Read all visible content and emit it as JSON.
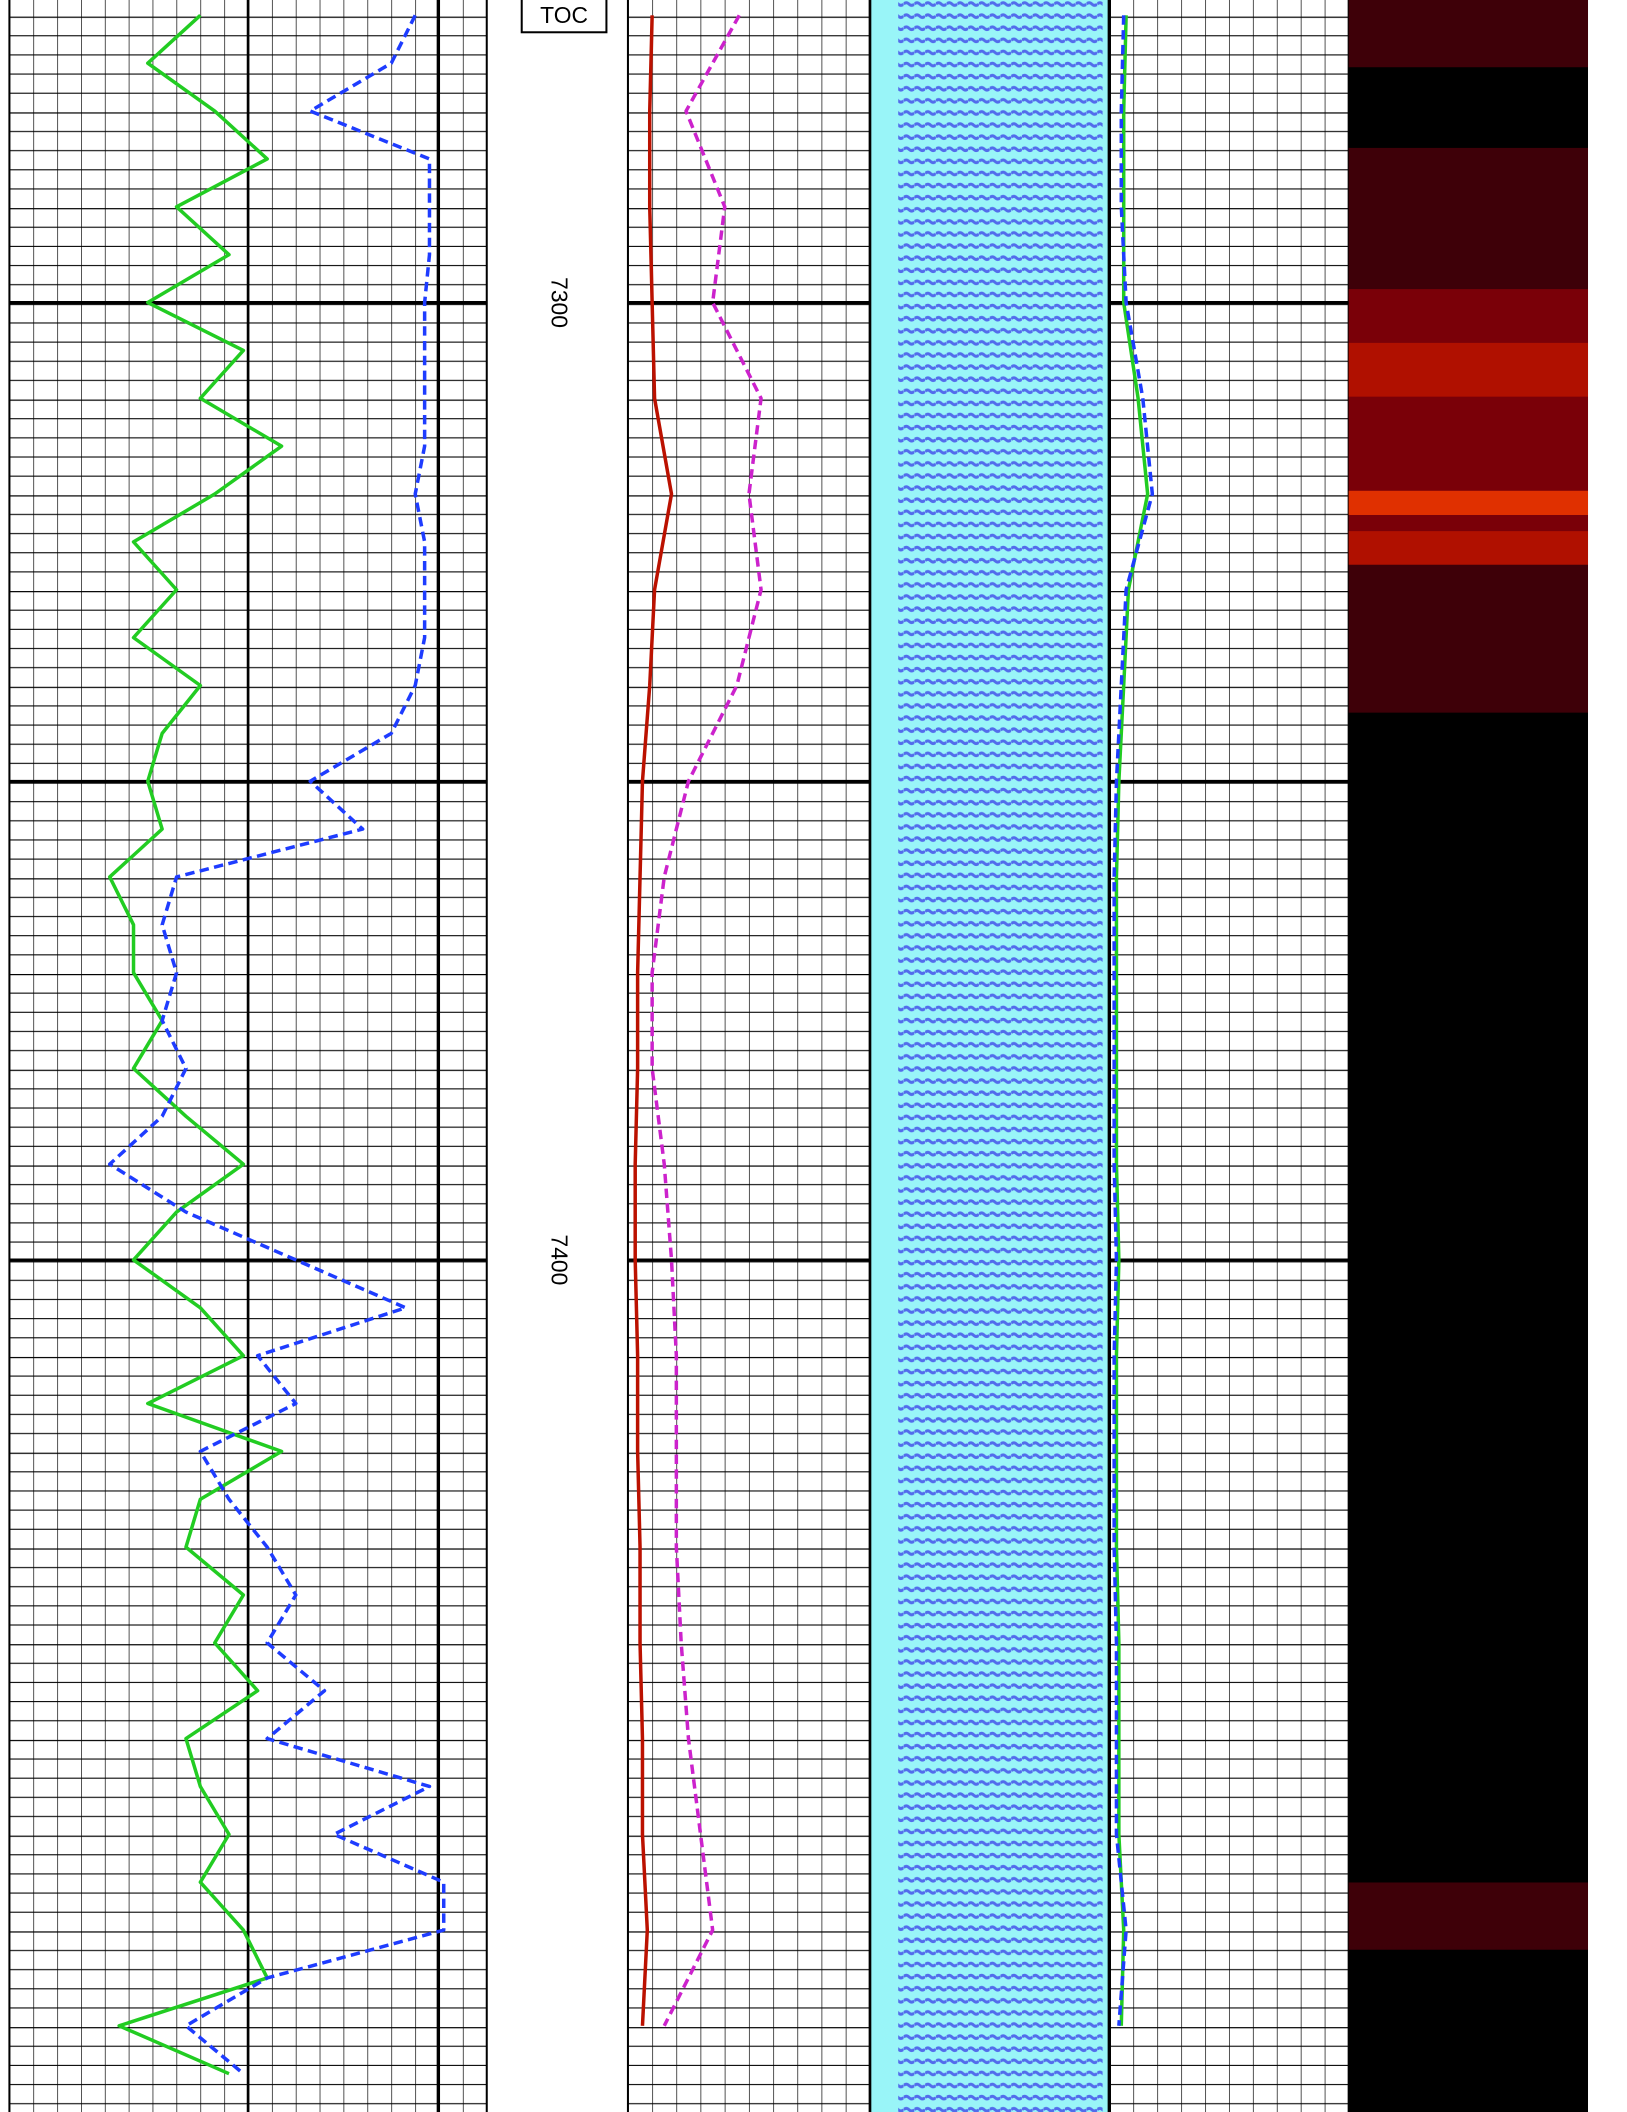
{
  "chart_data": {
    "type": "well_log",
    "ylim": [
      7268.4,
      7489.0
    ],
    "yticks": [
      7300,
      7400
    ],
    "annotation": "TOC",
    "tracks": [
      {
        "xlim": [
          0,
          10
        ],
        "series": [
          {
            "color": "#22cc22",
            "dashed": false,
            "x": [
              7270,
              7275,
              7280,
              7285,
              7290,
              7295,
              7300,
              7305,
              7310,
              7315,
              7320,
              7325,
              7330,
              7335,
              7340,
              7345,
              7350,
              7355,
              7360,
              7365,
              7370,
              7375,
              7380,
              7385,
              7390,
              7395,
              7400,
              7405,
              7410,
              7415,
              7420,
              7425,
              7430,
              7435,
              7440,
              7445,
              7450,
              7455,
              7460,
              7465,
              7470,
              7475,
              7480,
              7485
            ],
            "values": [
              4.0,
              2.9,
              4.3,
              5.4,
              3.5,
              4.6,
              2.9,
              4.9,
              4.0,
              5.7,
              4.3,
              2.6,
              3.5,
              2.6,
              4.0,
              3.2,
              2.9,
              3.2,
              2.1,
              2.6,
              2.6,
              3.2,
              2.6,
              3.7,
              4.9,
              3.5,
              2.6,
              4.0,
              4.9,
              2.9,
              5.7,
              4.0,
              3.7,
              4.9,
              4.3,
              5.2,
              3.7,
              4.0,
              4.6,
              4.0,
              4.9,
              5.4,
              2.3,
              4.6
            ]
          },
          {
            "color": "#1e3cff",
            "dashed": true,
            "x": [
              7270,
              7275,
              7280,
              7285,
              7290,
              7295,
              7300,
              7305,
              7310,
              7315,
              7320,
              7325,
              7330,
              7335,
              7340,
              7345,
              7350,
              7355,
              7360,
              7365,
              7370,
              7375,
              7380,
              7385,
              7390,
              7395,
              7400,
              7405,
              7410,
              7415,
              7420,
              7425,
              7430,
              7435,
              7440,
              7445,
              7450,
              7455,
              7460,
              7465,
              7470,
              7475,
              7480,
              7485
            ],
            "values": [
              8.5,
              8.0,
              6.3,
              8.8,
              8.8,
              8.8,
              8.7,
              8.7,
              8.7,
              8.7,
              8.5,
              8.7,
              8.7,
              8.7,
              8.5,
              8.0,
              6.3,
              7.4,
              3.5,
              3.2,
              3.5,
              3.2,
              3.7,
              3.2,
              2.1,
              3.7,
              6.0,
              8.3,
              5.2,
              6.0,
              4.0,
              4.6,
              5.4,
              6.0,
              5.4,
              6.6,
              5.4,
              8.8,
              6.8,
              9.1,
              9.1,
              5.4,
              3.7,
              4.9
            ]
          }
        ]
      },
      {
        "xlim": [
          0,
          10
        ],
        "series": [
          {
            "color": "#bb1100",
            "dashed": false,
            "x": [
              7270,
              7280,
              7290,
              7300,
              7310,
              7320,
              7330,
              7340,
              7350,
              7360,
              7370,
              7380,
              7390,
              7400,
              7410,
              7420,
              7430,
              7440,
              7450,
              7460,
              7470,
              7480
            ],
            "values": [
              1.0,
              0.9,
              0.9,
              1.0,
              1.1,
              1.8,
              1.1,
              0.9,
              0.6,
              0.5,
              0.4,
              0.4,
              0.3,
              0.3,
              0.4,
              0.4,
              0.5,
              0.5,
              0.6,
              0.6,
              0.8,
              0.6
            ]
          },
          {
            "color": "#cc22cc",
            "dashed": true,
            "x": [
              7270,
              7280,
              7290,
              7300,
              7310,
              7320,
              7330,
              7340,
              7350,
              7360,
              7370,
              7380,
              7390,
              7400,
              7410,
              7420,
              7430,
              7440,
              7450,
              7460,
              7470,
              7480
            ],
            "values": [
              4.6,
              2.4,
              4.0,
              3.5,
              5.5,
              5.0,
              5.5,
              4.5,
              2.5,
              1.5,
              1.0,
              1.0,
              1.5,
              1.8,
              2.0,
              2.0,
              2.0,
              2.2,
              2.5,
              3.0,
              3.5,
              1.5
            ]
          }
        ]
      },
      {
        "xlim": [
          0,
          10
        ],
        "series": [
          {
            "color": "#22cc22",
            "dashed": false,
            "x": [
              7270,
              7280,
              7290,
              7300,
              7310,
              7320,
              7330,
              7340,
              7350,
              7360,
              7370,
              7380,
              7390,
              7400,
              7410,
              7420,
              7430,
              7440,
              7450,
              7460,
              7470,
              7480
            ],
            "values": [
              0.7,
              0.6,
              0.6,
              0.6,
              1.2,
              1.6,
              0.8,
              0.6,
              0.4,
              0.3,
              0.3,
              0.3,
              0.3,
              0.4,
              0.3,
              0.3,
              0.3,
              0.4,
              0.4,
              0.4,
              0.6,
              0.5
            ]
          },
          {
            "color": "#1e3cff",
            "dashed": true,
            "x": [
              7270,
              7280,
              7290,
              7300,
              7310,
              7320,
              7330,
              7340,
              7350,
              7360,
              7370,
              7380,
              7390,
              7400,
              7410,
              7420,
              7430,
              7440,
              7450,
              7460,
              7470,
              7480
            ],
            "values": [
              0.6,
              0.5,
              0.5,
              0.7,
              1.4,
              1.8,
              0.7,
              0.5,
              0.3,
              0.2,
              0.2,
              0.2,
              0.2,
              0.3,
              0.2,
              0.2,
              0.2,
              0.3,
              0.3,
              0.3,
              0.7,
              0.4
            ]
          }
        ]
      }
    ]
  }
}
